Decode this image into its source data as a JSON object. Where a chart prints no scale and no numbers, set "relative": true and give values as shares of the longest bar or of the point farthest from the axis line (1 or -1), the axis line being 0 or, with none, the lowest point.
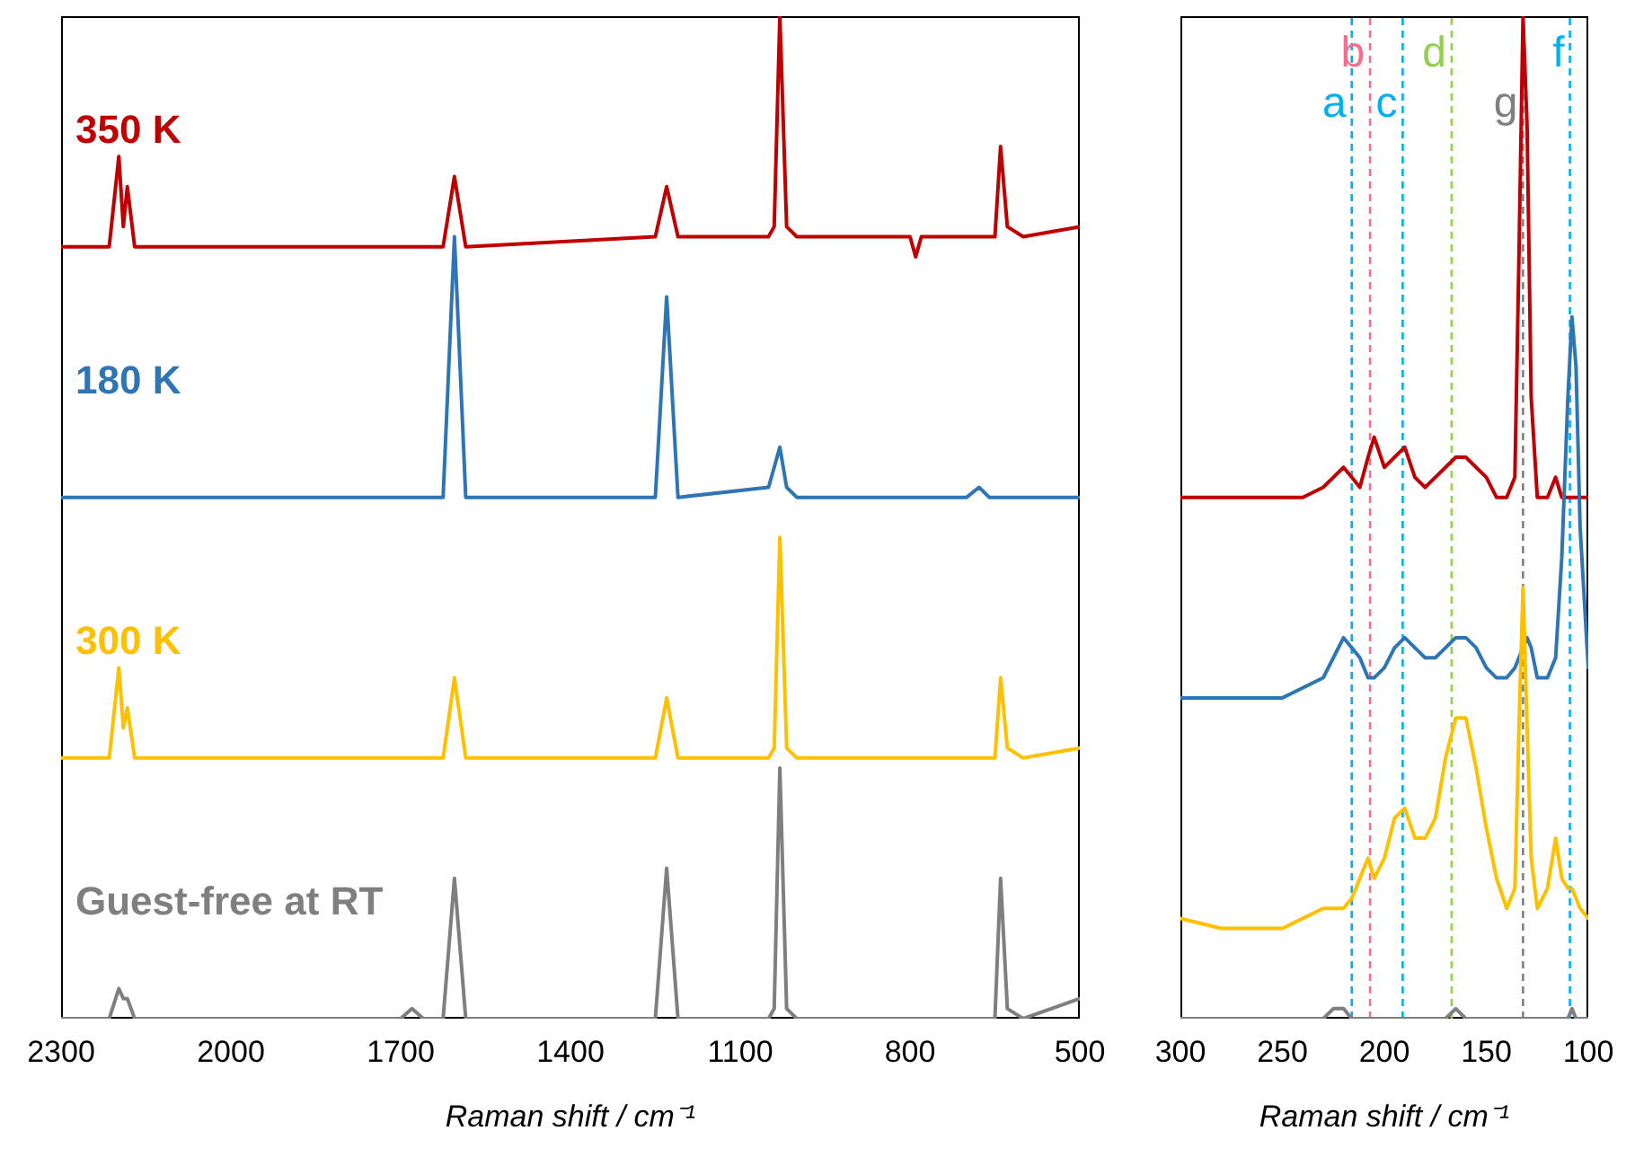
{
  "chart_data": [
    {
      "type": "line",
      "relative": true,
      "marker": "none",
      "xlabel": "Raman shift / cm⁻¹",
      "xlim": [
        2300,
        500
      ],
      "xticks": [
        2300,
        2000,
        1700,
        1400,
        1100,
        800,
        500
      ],
      "x": [
        2300,
        2215,
        2198,
        2190,
        2183,
        2170,
        1700,
        1680,
        1660,
        1625,
        1605,
        1585,
        1250,
        1230,
        1210,
        1050,
        1040,
        1030,
        1018,
        1000,
        800,
        790,
        780,
        700,
        678,
        660,
        650,
        640,
        628,
        600,
        500
      ],
      "series": [
        {
          "name": "350 K",
          "color": "#c00000",
          "values": [
            0.77,
            0.77,
            0.86,
            0.79,
            0.83,
            0.77,
            0.77,
            0.77,
            0.77,
            0.77,
            0.84,
            0.77,
            0.78,
            0.83,
            0.78,
            0.78,
            0.79,
            1,
            0.79,
            0.78,
            0.78,
            0.76,
            0.78,
            0.78,
            0.78,
            0.78,
            0.78,
            0.87,
            0.79,
            0.78,
            0.79
          ]
        },
        {
          "name": "180 K",
          "color": "#2e75b6",
          "values": [
            0.52,
            0.52,
            0.52,
            0.52,
            0.52,
            0.52,
            0.52,
            0.52,
            0.52,
            0.52,
            0.78,
            0.52,
            0.52,
            0.72,
            0.52,
            0.53,
            0.55,
            0.57,
            0.53,
            0.52,
            0.52,
            0.52,
            0.52,
            0.52,
            0.53,
            0.52,
            0.52,
            0.52,
            0.52,
            0.52,
            0.52
          ]
        },
        {
          "name": "300 K",
          "color": "#ffc000",
          "values": [
            0.26,
            0.26,
            0.35,
            0.29,
            0.31,
            0.26,
            0.26,
            0.26,
            0.26,
            0.26,
            0.34,
            0.26,
            0.26,
            0.32,
            0.26,
            0.26,
            0.27,
            0.48,
            0.27,
            0.26,
            0.26,
            0.26,
            0.26,
            0.26,
            0.26,
            0.26,
            0.26,
            0.34,
            0.27,
            0.26,
            0.27
          ]
        },
        {
          "name": "Guest-free at RT",
          "color": "#7f7f7f",
          "values": [
            0,
            0,
            0.03,
            0.02,
            0.02,
            0,
            0,
            0.01,
            0,
            0,
            0.14,
            0,
            0,
            0.15,
            0,
            0,
            0.01,
            0.25,
            0.01,
            0,
            0,
            0,
            0,
            0,
            0,
            0,
            0,
            0.14,
            0.01,
            0,
            0.02
          ]
        }
      ]
    },
    {
      "type": "line",
      "relative": true,
      "marker": "none",
      "xlabel": "Raman shift / cm⁻¹",
      "xlim": [
        300,
        100
      ],
      "xticks": [
        300,
        250,
        200,
        150,
        100
      ],
      "x": [
        300,
        280,
        260,
        250,
        240,
        230,
        225,
        220,
        216,
        212,
        208,
        205,
        200,
        195,
        190,
        185,
        180,
        175,
        170,
        165,
        160,
        155,
        150,
        145,
        140,
        136,
        134,
        132,
        130,
        128,
        125,
        120,
        116,
        113,
        110,
        108,
        106,
        104,
        100
      ],
      "series": [
        {
          "color": "#c00000",
          "values": [
            0.52,
            0.52,
            0.52,
            0.52,
            0.52,
            0.53,
            0.54,
            0.55,
            0.54,
            0.53,
            0.56,
            0.58,
            0.55,
            0.56,
            0.57,
            0.54,
            0.53,
            0.54,
            0.55,
            0.56,
            0.56,
            0.55,
            0.54,
            0.52,
            0.52,
            0.54,
            0.76,
            1,
            0.89,
            0.62,
            0.52,
            0.52,
            0.54,
            0.52,
            0.52,
            0.52,
            0.52,
            0.52,
            0.52
          ]
        },
        {
          "color": "#2e75b6",
          "values": [
            0.32,
            0.32,
            0.32,
            0.32,
            0.33,
            0.34,
            0.36,
            0.38,
            0.37,
            0.36,
            0.34,
            0.34,
            0.35,
            0.37,
            0.38,
            0.37,
            0.36,
            0.36,
            0.37,
            0.38,
            0.38,
            0.37,
            0.35,
            0.34,
            0.34,
            0.35,
            0.36,
            0.37,
            0.38,
            0.37,
            0.34,
            0.34,
            0.36,
            0.46,
            0.62,
            0.7,
            0.65,
            0.49,
            0.35
          ]
        },
        {
          "color": "#ffc000",
          "values": [
            0.1,
            0.09,
            0.09,
            0.09,
            0.1,
            0.11,
            0.11,
            0.11,
            0.12,
            0.14,
            0.16,
            0.14,
            0.16,
            0.2,
            0.21,
            0.18,
            0.18,
            0.2,
            0.26,
            0.3,
            0.3,
            0.25,
            0.19,
            0.14,
            0.11,
            0.13,
            0.29,
            0.43,
            0.29,
            0.16,
            0.11,
            0.13,
            0.18,
            0.14,
            0.13,
            0.13,
            0.12,
            0.11,
            0.1
          ]
        },
        {
          "color": "#7f7f7f",
          "values": [
            0,
            0,
            0,
            0,
            0,
            0,
            0.01,
            0.01,
            0,
            0,
            0,
            0,
            0,
            0,
            0,
            0,
            0,
            0,
            0,
            0.01,
            0,
            0,
            0,
            0,
            0,
            0,
            0,
            0,
            0,
            0,
            0,
            0,
            0,
            0,
            0,
            0.01,
            0,
            0,
            0
          ]
        }
      ],
      "ref_lines": [
        {
          "axis": "x",
          "value": 216,
          "label": "a",
          "color": "#00b0f0",
          "line_style": "dashed"
        },
        {
          "axis": "x",
          "value": 207,
          "label": "b",
          "color": "#f0708f",
          "line_style": "dashed"
        },
        {
          "axis": "x",
          "value": 191,
          "label": "c",
          "color": "#00b0f0",
          "line_style": "dashed"
        },
        {
          "axis": "x",
          "value": 167,
          "label": "d",
          "color": "#92d050",
          "line_style": "dashed"
        },
        {
          "axis": "x",
          "value": 132,
          "label": "g",
          "color": "#808080",
          "line_style": "dashed"
        },
        {
          "axis": "x",
          "value": 109,
          "label": "f",
          "color": "#00b0f0",
          "line_style": "dashed"
        }
      ]
    }
  ]
}
